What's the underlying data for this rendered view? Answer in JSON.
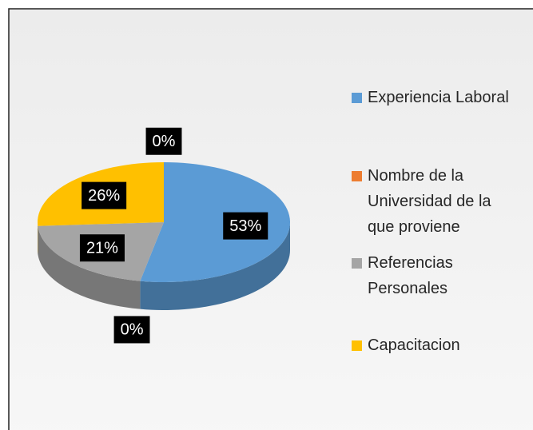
{
  "chart_data": {
    "type": "pie",
    "categories": [
      "Experiencia Laboral",
      "Nombre de la Universidad de la que proviene",
      "Referencias Personales",
      "Capacitacion",
      null
    ],
    "values": [
      53,
      0,
      21,
      26,
      0
    ],
    "value_labels": [
      "53%",
      "0%",
      "21%",
      "26%",
      "0%"
    ],
    "colors": [
      "#5b9bd5",
      "#ed7d31",
      "#a5a5a5",
      "#ffc000",
      "#4472c4"
    ],
    "legend": "right"
  }
}
